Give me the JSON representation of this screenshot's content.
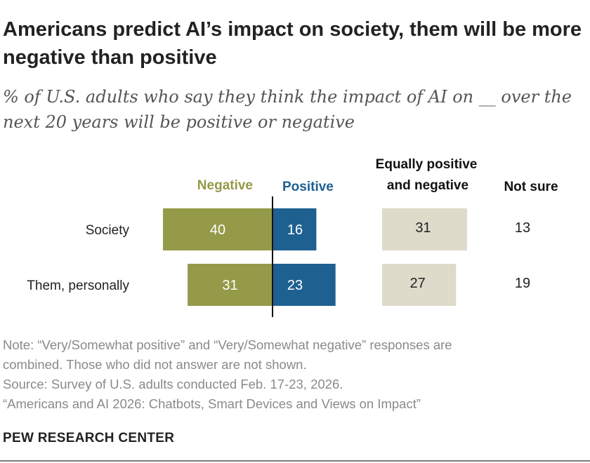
{
  "chart_data": {
    "type": "bar",
    "title": "Americans predict AI’s impact on society, them will be more negative than positive",
    "subtitle": "% of U.S. adults who say they think the impact of AI on __ over the next 20 years will be positive or negative",
    "columns": {
      "negative": "Negative",
      "positive": "Positive",
      "equally_line1": "Equally positive",
      "equally_line2": "and negative",
      "not_sure": "Not sure"
    },
    "categories": [
      "Society",
      "Them, personally"
    ],
    "series": [
      {
        "name": "Negative",
        "values": [
          40,
          31
        ],
        "color": "#949a48"
      },
      {
        "name": "Positive",
        "values": [
          16,
          23
        ],
        "color": "#1e6090"
      },
      {
        "name": "Equally positive and negative",
        "values": [
          31,
          27
        ],
        "color": "#dedbcb"
      },
      {
        "name": "Not sure",
        "values": [
          13,
          19
        ]
      }
    ]
  },
  "notes": {
    "note_line1": "Note: “Very/Somewhat positive” and “Very/Somewhat negative” responses are",
    "note_line2": "combined. Those who did not answer are not shown.",
    "source": "Source: Survey of U.S. adults conducted Feb. 17-23, 2026.",
    "report": "“Americans and AI 2026: Chatbots, Smart Devices and Views on Impact”"
  },
  "branding": "PEW RESEARCH CENTER",
  "colors": {
    "negative": "#949a48",
    "positive": "#1e6090",
    "equally": "#dedbcb",
    "axis": "#111111"
  }
}
